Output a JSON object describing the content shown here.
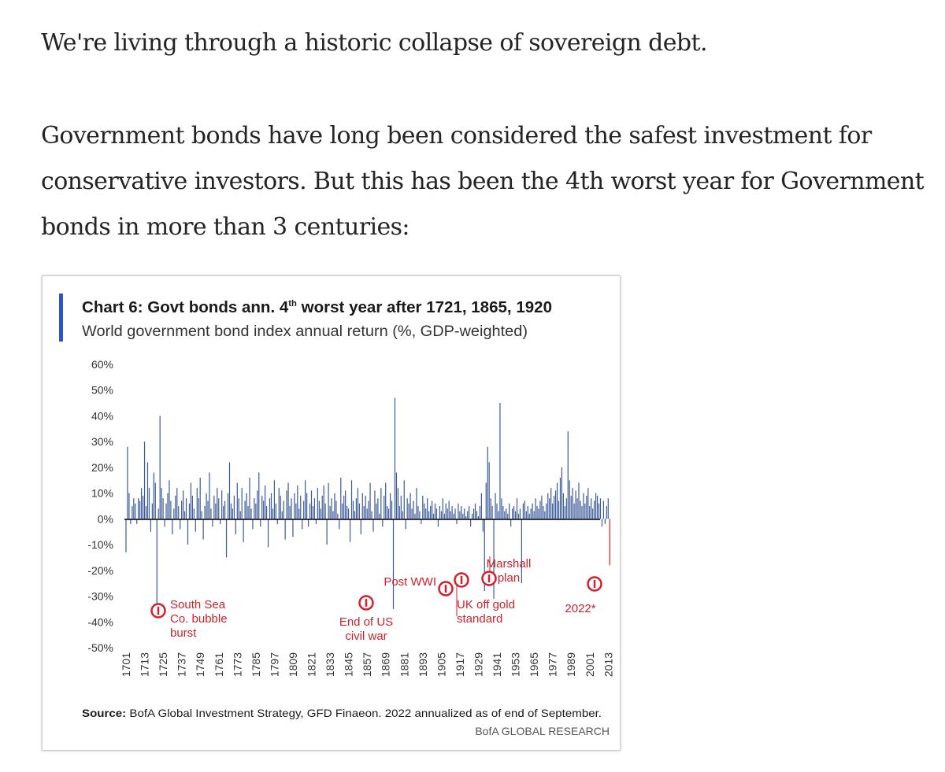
{
  "article": {
    "paragraph_1": "We're living through a historic collapse of sovereign debt.",
    "paragraph_2": "Government bonds have long been considered the safest investment for conservative investors. But this has been the 4th worst year for Government bonds in more than 3 centuries:"
  },
  "chart_data": {
    "type": "bar",
    "title": "Chart 6: Govt bonds ann. 4",
    "title_superscript": "th",
    "title_rest": " worst year after 1721, 1865, 1920",
    "subtitle": "World government bond index annual return (%, GDP-weighted)",
    "ylim": [
      -50,
      60
    ],
    "yticks": [
      "60%",
      "50%",
      "40%",
      "30%",
      "20%",
      "10%",
      "0%",
      "-10%",
      "-20%",
      "-30%",
      "-40%",
      "-50%"
    ],
    "xticks": [
      "1701",
      "1713",
      "1725",
      "1737",
      "1749",
      "1761",
      "1773",
      "1785",
      "1797",
      "1809",
      "1821",
      "1833",
      "1845",
      "1857",
      "1869",
      "1881",
      "1893",
      "1905",
      "1917",
      "1929",
      "1941",
      "1953",
      "1965",
      "1977",
      "1989",
      "2001",
      "2013"
    ],
    "grid": false,
    "legend": "none",
    "bar_color": "#3b5a9a",
    "highlight_color": "#d4202a",
    "accent_color": "#2a56c6",
    "x_start": 1701,
    "values": [
      -13,
      28,
      10,
      -2,
      5,
      8,
      6,
      -2,
      8,
      7,
      12,
      9,
      30,
      5,
      22,
      12,
      -5,
      6,
      18,
      14,
      -35,
      4,
      40,
      12,
      8,
      -3,
      6,
      10,
      15,
      7,
      -6,
      4,
      9,
      12,
      5,
      -4,
      7,
      11,
      3,
      8,
      -10,
      6,
      14,
      9,
      4,
      -5,
      12,
      8,
      16,
      3,
      -8,
      5,
      10,
      7,
      18,
      4,
      -3,
      9,
      6,
      12,
      8,
      -2,
      11,
      5,
      7,
      -15,
      10,
      22,
      6,
      4,
      9,
      -6,
      14,
      8,
      3,
      12,
      -9,
      7,
      10,
      5,
      16,
      4,
      -4,
      8,
      6,
      11,
      18,
      -3,
      9,
      7,
      13,
      5,
      -11,
      8,
      10,
      4,
      15,
      6,
      -2,
      12,
      9,
      3,
      7,
      -8,
      11,
      14,
      5,
      8,
      -7,
      10,
      6,
      13,
      4,
      9,
      -4,
      7,
      15,
      10,
      -3,
      6,
      11,
      5,
      8,
      -2,
      12,
      7,
      4,
      9,
      13,
      6,
      -10,
      14,
      5,
      8,
      3,
      10,
      7,
      2,
      -4,
      16,
      6,
      9,
      11,
      5,
      4,
      -9,
      15,
      7,
      3,
      8,
      12,
      6,
      -6,
      10,
      5,
      9,
      4,
      7,
      14,
      3,
      -5,
      11,
      6,
      8,
      2,
      12,
      -3,
      9,
      14,
      5,
      4,
      10,
      7,
      -35,
      47,
      18,
      12,
      5,
      9,
      3,
      15,
      -4,
      8,
      6,
      10,
      4,
      7,
      2,
      12,
      5,
      3,
      -2,
      9,
      6,
      4,
      8,
      3,
      5,
      7,
      2,
      6,
      4,
      -3,
      5,
      3,
      8,
      2,
      6,
      4,
      7,
      3,
      5,
      2,
      4,
      -2,
      6,
      3,
      5,
      2,
      4,
      1,
      3,
      5,
      -3,
      2,
      4,
      6,
      3,
      1,
      5,
      10,
      -5,
      -28,
      14,
      28,
      22,
      8,
      5,
      -31,
      10,
      6,
      3,
      45,
      8,
      5,
      3,
      4,
      2,
      6,
      -3,
      4,
      5,
      3,
      8,
      2,
      4,
      -25,
      6,
      7,
      3,
      5,
      2,
      4,
      6,
      3,
      8,
      5,
      4,
      7,
      9,
      5,
      3,
      6,
      10,
      8,
      12,
      6,
      9,
      11,
      14,
      7,
      16,
      20,
      10,
      5,
      8,
      34,
      15,
      9,
      12,
      6,
      11,
      8,
      14,
      7,
      5,
      10,
      6,
      9,
      12,
      5,
      8,
      4,
      7,
      10,
      9,
      6,
      8,
      -3,
      7,
      -2,
      5,
      8,
      -18
    ],
    "annotations": [
      {
        "lines": [
          "South Sea",
          "Co. bubble",
          "burst"
        ],
        "year": 1721
      },
      {
        "lines": [
          "End of US",
          "civil war"
        ],
        "year": 1865
      },
      {
        "lines": [
          "Post WWI"
        ],
        "year": 1920
      },
      {
        "lines": [
          "UK off gold",
          "standard"
        ],
        "year": 1931
      },
      {
        "lines": [
          "Marshall",
          "plan"
        ],
        "year": 1948
      },
      {
        "lines": [
          "2022*"
        ],
        "year": 2022
      }
    ],
    "source_label": "Source:",
    "source_text": " BofA Global Investment Strategy, GFD Finaeon. 2022 annualized as of end of September.",
    "brand": "BofA GLOBAL RESEARCH"
  }
}
